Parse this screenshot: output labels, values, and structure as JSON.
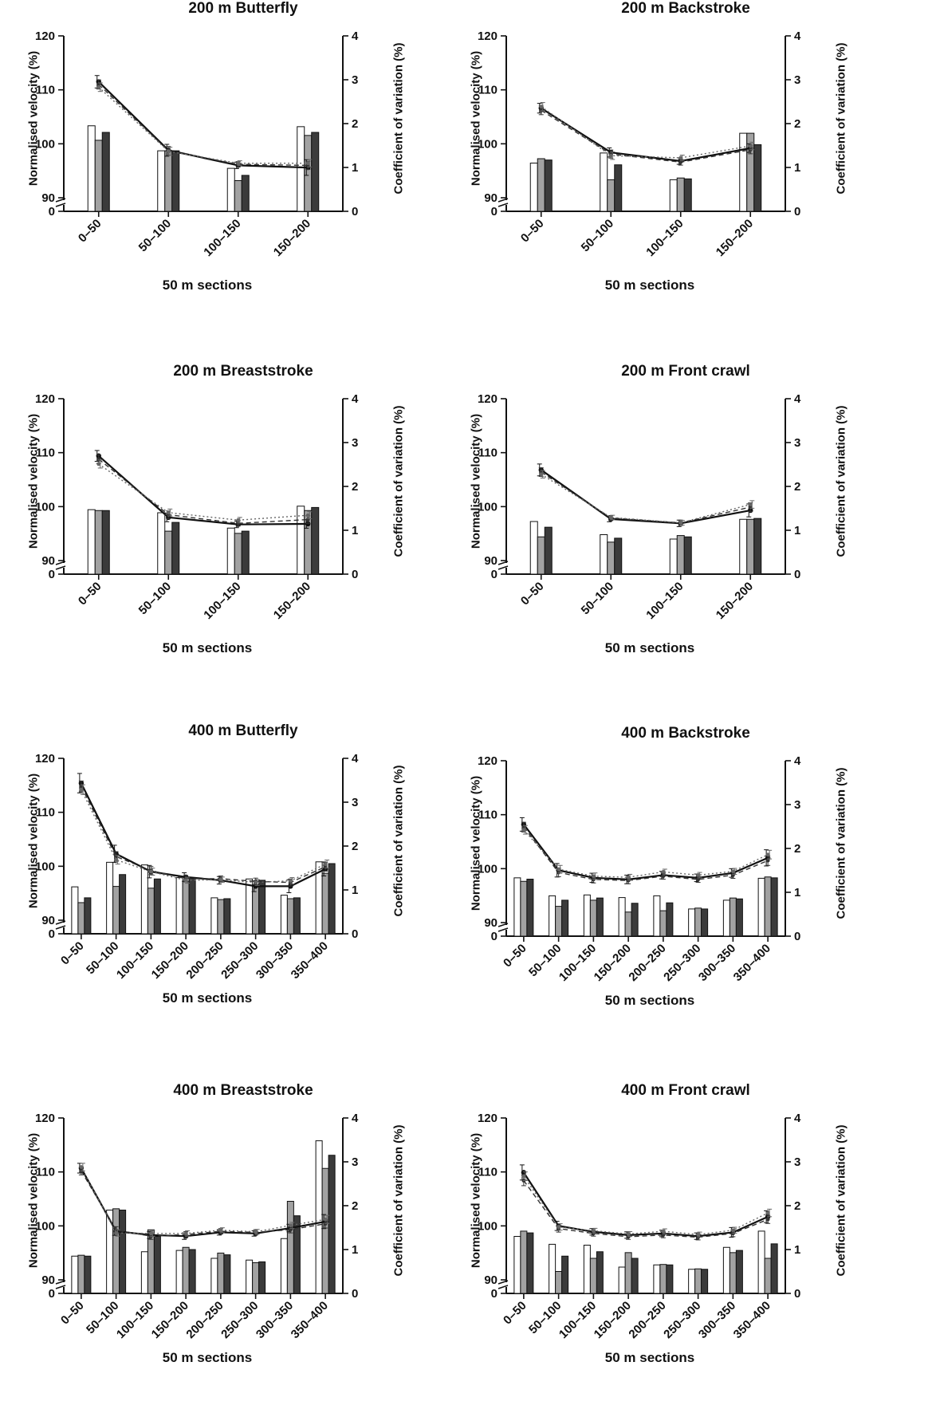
{
  "shared": {
    "ylabel_left": "Normalised velocity (%)",
    "ylabel_right": "Coefficient of variation (%)",
    "xlabel": "50 m sections",
    "left_ticks": [
      "120",
      "110",
      "100",
      "90",
      "0"
    ],
    "right_ticks": [
      "4",
      "3",
      "2",
      "1",
      "0"
    ]
  },
  "chart_data": [
    {
      "type": "bar+line",
      "title": "200 m Butterfly",
      "categories": [
        "0–50",
        "50–100",
        "100–150",
        "150–200"
      ],
      "bar_series": [
        {
          "name": "bar-white",
          "values": [
            1.95,
            1.38,
            0.98,
            1.93
          ]
        },
        {
          "name": "bar-lightgray",
          "values": [
            1.62,
            1.38,
            0.7,
            1.73
          ]
        },
        {
          "name": "bar-darkgray",
          "values": [
            1.8,
            1.38,
            0.82,
            1.8
          ]
        }
      ],
      "line_series": [
        {
          "name": "line-1",
          "values": [
            111.5,
            98.8,
            96.0,
            95.6
          ],
          "errors": [
            2.3,
            2.2,
            1.2,
            2.9
          ]
        },
        {
          "name": "line-2",
          "values": [
            111.0,
            98.7,
            96.2,
            96.0
          ],
          "errors": [
            1.7,
            1.6,
            1.0,
            1.5
          ]
        },
        {
          "name": "line-3",
          "values": [
            110.5,
            98.6,
            96.4,
            96.4
          ],
          "errors": [
            1.6,
            1.5,
            0.9,
            1.4
          ]
        }
      ],
      "ylim_left": [
        90,
        120
      ],
      "ylim_right": [
        0,
        4
      ]
    },
    {
      "type": "bar+line",
      "title": "200 m Backstroke",
      "categories": [
        "0–50",
        "50–100",
        "100–150",
        "150–200"
      ],
      "bar_series": [
        {
          "name": "bar-white",
          "values": [
            1.1,
            1.33,
            0.72,
            1.78
          ]
        },
        {
          "name": "bar-lightgray",
          "values": [
            1.2,
            0.72,
            0.76,
            1.78
          ]
        },
        {
          "name": "bar-darkgray",
          "values": [
            1.17,
            1.06,
            0.74,
            1.52
          ]
        }
      ],
      "line_series": [
        {
          "name": "line-1",
          "values": [
            106.6,
            98.4,
            96.8,
            99.2
          ],
          "errors": [
            1.8,
            1.7,
            1.2,
            1.6
          ]
        },
        {
          "name": "line-2",
          "values": [
            106.2,
            98.1,
            96.6,
            98.9
          ],
          "errors": [
            1.6,
            1.5,
            1.1,
            1.5
          ]
        },
        {
          "name": "line-3",
          "values": [
            106.9,
            97.8,
            97.4,
            99.6
          ],
          "errors": [
            1.5,
            1.4,
            1.0,
            1.4
          ]
        }
      ],
      "ylim_left": [
        90,
        120
      ],
      "ylim_right": [
        0,
        4
      ]
    },
    {
      "type": "bar+line",
      "title": "200 m Breaststroke",
      "categories": [
        "0–50",
        "50–100",
        "100–150",
        "150–200"
      ],
      "bar_series": [
        {
          "name": "bar-white",
          "values": [
            1.47,
            1.4,
            1.05,
            1.55
          ]
        },
        {
          "name": "bar-lightgray",
          "values": [
            1.45,
            0.98,
            0.93,
            1.45
          ]
        },
        {
          "name": "bar-darkgray",
          "values": [
            1.45,
            1.18,
            0.98,
            1.52
          ]
        }
      ],
      "line_series": [
        {
          "name": "line-1",
          "values": [
            109.4,
            98.0,
            96.7,
            96.8
          ],
          "errors": [
            2.0,
            1.6,
            1.2,
            1.6
          ]
        },
        {
          "name": "line-2",
          "values": [
            108.8,
            98.5,
            96.9,
            97.6
          ],
          "errors": [
            1.6,
            1.4,
            1.0,
            1.4
          ]
        },
        {
          "name": "line-3",
          "values": [
            107.9,
            98.9,
            97.5,
            98.4
          ],
          "errors": [
            1.5,
            1.3,
            1.0,
            1.3
          ]
        }
      ],
      "ylim_left": [
        90,
        120
      ],
      "ylim_right": [
        0,
        4
      ]
    },
    {
      "type": "bar+line",
      "title": "200 m Front crawl",
      "categories": [
        "0–50",
        "50–100",
        "100–150",
        "150–200"
      ],
      "bar_series": [
        {
          "name": "bar-white",
          "values": [
            1.2,
            0.9,
            0.8,
            1.25
          ]
        },
        {
          "name": "bar-lightgray",
          "values": [
            0.85,
            0.73,
            0.88,
            1.25
          ]
        },
        {
          "name": "bar-darkgray",
          "values": [
            1.07,
            0.82,
            0.85,
            1.27
          ]
        }
      ],
      "line_series": [
        {
          "name": "line-1",
          "values": [
            106.8,
            97.7,
            96.9,
            99.3
          ],
          "errors": [
            2.2,
            1.0,
            1.2,
            2.4
          ]
        },
        {
          "name": "line-2",
          "values": [
            106.4,
            97.9,
            97.0,
            99.9
          ],
          "errors": [
            1.6,
            0.9,
            1.0,
            1.6
          ]
        },
        {
          "name": "line-3",
          "values": [
            106.0,
            98.0,
            97.0,
            100.4
          ],
          "errors": [
            1.4,
            0.8,
            0.9,
            1.4
          ]
        }
      ],
      "ylim_left": [
        90,
        120
      ],
      "ylim_right": [
        0,
        4
      ]
    },
    {
      "type": "bar+line",
      "title": "400 m Butterfly",
      "categories": [
        "0–50",
        "50–100",
        "100–150",
        "150–200",
        "200–250",
        "250–300",
        "300–350",
        "350–400"
      ],
      "bar_series": [
        {
          "name": "bar-white",
          "values": [
            1.07,
            1.63,
            1.57,
            1.28,
            0.82,
            1.25,
            0.88,
            1.64
          ]
        },
        {
          "name": "bar-lightgray",
          "values": [
            0.71,
            1.08,
            1.04,
            1.2,
            0.78,
            1.12,
            0.8,
            1.38
          ]
        },
        {
          "name": "bar-darkgray",
          "values": [
            0.82,
            1.35,
            1.25,
            1.28,
            0.8,
            1.22,
            0.82,
            1.6
          ]
        }
      ],
      "line_series": [
        {
          "name": "line-1",
          "values": [
            115.4,
            102.3,
            99.0,
            98.0,
            97.4,
            96.3,
            96.3,
            99.5
          ],
          "errors": [
            3.6,
            3.2,
            2.3,
            1.6,
            1.4,
            2.0,
            2.4,
            2.6
          ]
        },
        {
          "name": "line-2",
          "values": [
            114.8,
            101.8,
            99.2,
            97.7,
            97.7,
            97.2,
            97.0,
            99.9
          ],
          "errors": [
            2.0,
            1.8,
            1.5,
            1.2,
            1.0,
            1.2,
            1.3,
            1.6
          ]
        },
        {
          "name": "line-3",
          "values": [
            114.2,
            101.2,
            99.0,
            97.4,
            97.5,
            97.0,
            97.3,
            100.4
          ],
          "errors": [
            1.8,
            1.6,
            1.3,
            1.1,
            1.0,
            1.1,
            1.2,
            1.5
          ]
        }
      ],
      "ylim_left": [
        90,
        120
      ],
      "ylim_right": [
        0,
        4
      ]
    },
    {
      "type": "bar+line",
      "title": "400 m Backstroke",
      "categories": [
        "0–50",
        "50–100",
        "100–150",
        "150–200",
        "200–250",
        "250–300",
        "300–350",
        "350–400"
      ],
      "bar_series": [
        {
          "name": "bar-white",
          "values": [
            1.33,
            0.92,
            0.94,
            0.88,
            0.92,
            0.62,
            0.82,
            1.32
          ]
        },
        {
          "name": "bar-lightgray",
          "values": [
            1.25,
            0.68,
            0.82,
            0.55,
            0.58,
            0.64,
            0.87,
            1.35
          ]
        },
        {
          "name": "bar-darkgray",
          "values": [
            1.3,
            0.82,
            0.87,
            0.75,
            0.76,
            0.62,
            0.85,
            1.33
          ]
        }
      ],
      "line_series": [
        {
          "name": "line-1",
          "values": [
            108.2,
            99.7,
            98.3,
            98.0,
            98.8,
            98.3,
            99.2,
            102.0
          ],
          "errors": [
            2.5,
            2.5,
            1.7,
            1.6,
            1.4,
            1.4,
            1.6,
            3.0
          ]
        },
        {
          "name": "line-2",
          "values": [
            107.7,
            99.3,
            98.0,
            97.8,
            98.6,
            98.0,
            98.8,
            101.5
          ],
          "errors": [
            1.8,
            1.6,
            1.3,
            1.2,
            1.1,
            1.1,
            1.2,
            1.8
          ]
        },
        {
          "name": "line-3",
          "values": [
            107.2,
            99.9,
            98.6,
            98.4,
            99.4,
            98.8,
            99.5,
            102.6
          ],
          "errors": [
            1.6,
            1.4,
            1.2,
            1.1,
            1.0,
            1.0,
            1.1,
            1.6
          ]
        }
      ],
      "ylim_left": [
        90,
        120
      ],
      "ylim_right": [
        0,
        4
      ]
    },
    {
      "type": "bar+line",
      "title": "400 m Breaststroke",
      "categories": [
        "0–50",
        "50–100",
        "100–150",
        "150–200",
        "200–250",
        "250–300",
        "300–350",
        "350–400"
      ],
      "bar_series": [
        {
          "name": "bar-white",
          "values": [
            0.85,
            1.9,
            0.95,
            0.98,
            0.8,
            0.76,
            1.25,
            3.48
          ]
        },
        {
          "name": "bar-lightgray",
          "values": [
            0.87,
            1.93,
            1.45,
            1.05,
            0.92,
            0.7,
            2.1,
            2.85
          ]
        },
        {
          "name": "bar-darkgray",
          "values": [
            0.85,
            1.9,
            1.3,
            1.0,
            0.88,
            0.72,
            1.77,
            3.15
          ]
        }
      ],
      "line_series": [
        {
          "name": "line-1",
          "values": [
            110.7,
            99.0,
            98.3,
            98.1,
            98.8,
            98.6,
            99.6,
            100.8
          ],
          "errors": [
            1.8,
            1.5,
            1.3,
            1.2,
            1.0,
            1.0,
            1.4,
            2.6
          ]
        },
        {
          "name": "line-2",
          "values": [
            110.2,
            99.2,
            98.1,
            98.4,
            99.0,
            98.8,
            99.3,
            100.4
          ],
          "errors": [
            1.5,
            1.3,
            1.2,
            1.1,
            1.0,
            1.0,
            1.2,
            1.6
          ]
        },
        {
          "name": "line-3",
          "values": [
            110.9,
            98.7,
            98.6,
            98.6,
            99.2,
            98.9,
            100.1,
            101.2
          ],
          "errors": [
            1.4,
            1.2,
            1.1,
            1.0,
            0.9,
            0.9,
            1.1,
            1.5
          ]
        }
      ],
      "ylim_left": [
        90,
        120
      ],
      "ylim_right": [
        0,
        4
      ]
    },
    {
      "type": "bar+line",
      "title": "400 m Front crawl",
      "categories": [
        "0–50",
        "50–100",
        "100–150",
        "150–200",
        "200–250",
        "250–300",
        "300–350",
        "350–400"
      ],
      "bar_series": [
        {
          "name": "bar-white",
          "values": [
            1.3,
            1.12,
            1.1,
            0.6,
            0.65,
            0.55,
            1.05,
            1.42
          ]
        },
        {
          "name": "bar-lightgray",
          "values": [
            1.42,
            0.5,
            0.8,
            0.93,
            0.66,
            0.56,
            0.93,
            0.8
          ]
        },
        {
          "name": "bar-darkgray",
          "values": [
            1.38,
            0.85,
            0.95,
            0.8,
            0.65,
            0.55,
            0.98,
            1.13
          ]
        }
      ],
      "line_series": [
        {
          "name": "line-1",
          "values": [
            109.9,
            100.0,
            98.9,
            98.3,
            98.6,
            98.1,
            98.8,
            101.7
          ],
          "errors": [
            2.8,
            1.7,
            1.2,
            1.2,
            1.2,
            1.2,
            1.8,
            2.2
          ]
        },
        {
          "name": "line-2",
          "values": [
            108.4,
            99.5,
            98.6,
            98.0,
            98.3,
            97.9,
            98.6,
            101.2
          ],
          "errors": [
            1.9,
            1.3,
            1.0,
            1.0,
            1.0,
            1.0,
            1.2,
            1.5
          ]
        },
        {
          "name": "line-3",
          "values": [
            109.2,
            99.8,
            99.1,
            98.5,
            99.0,
            98.4,
            99.2,
            102.4
          ],
          "errors": [
            1.6,
            1.2,
            0.9,
            0.9,
            0.9,
            0.9,
            1.1,
            1.4
          ]
        }
      ],
      "ylim_left": [
        90,
        120
      ],
      "ylim_right": [
        0,
        4
      ]
    }
  ]
}
